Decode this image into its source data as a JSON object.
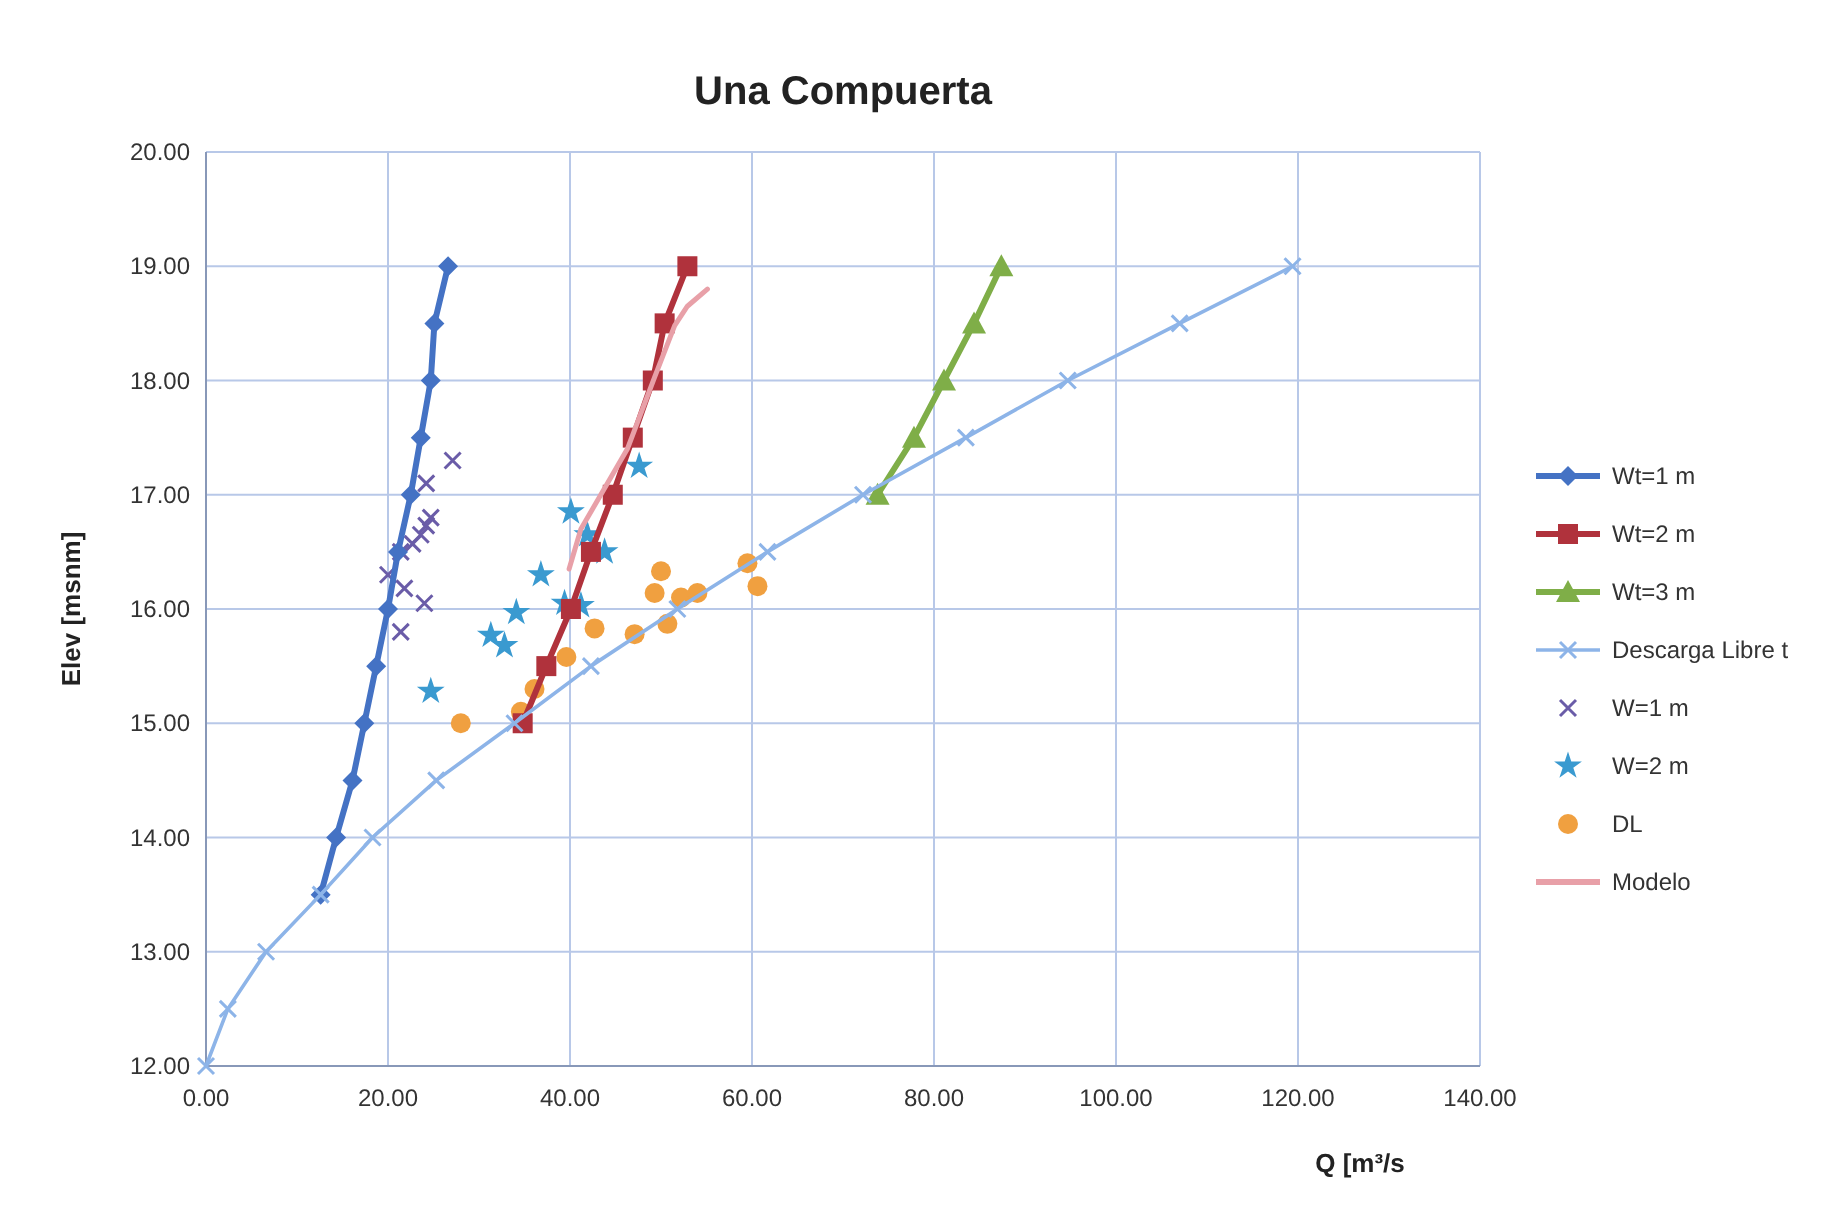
{
  "chart_data": {
    "type": "line",
    "title": "Una Compuerta",
    "xlabel": "Q [m³/s",
    "ylabel": "Elev [msnm]",
    "xlim": [
      0,
      140
    ],
    "ylim": [
      12,
      20
    ],
    "xticks": [
      {
        "value": 0,
        "label": "0.00"
      },
      {
        "value": 20,
        "label": "20.00"
      },
      {
        "value": 40,
        "label": "40.00"
      },
      {
        "value": 60,
        "label": "60.00"
      },
      {
        "value": 80,
        "label": "80.00"
      },
      {
        "value": 100,
        "label": "100.00"
      },
      {
        "value": 120,
        "label": "120.00"
      },
      {
        "value": 140,
        "label": "140.00"
      }
    ],
    "yticks": [
      {
        "value": 12,
        "label": "12.00"
      },
      {
        "value": 13,
        "label": "13.00"
      },
      {
        "value": 14,
        "label": "14.00"
      },
      {
        "value": 15,
        "label": "15.00"
      },
      {
        "value": 16,
        "label": "16.00"
      },
      {
        "value": 17,
        "label": "17.00"
      },
      {
        "value": 18,
        "label": "18.00"
      },
      {
        "value": 19,
        "label": "19.00"
      },
      {
        "value": 20,
        "label": "20.00"
      }
    ],
    "grid": true,
    "legend": "right",
    "series": [
      {
        "name": "Wt=1 m",
        "marker": "diamond",
        "color": "#4472c4",
        "x": [
          12.6,
          14.3,
          16.1,
          17.4,
          18.7,
          20.0,
          21.1,
          22.5,
          23.6,
          24.7,
          25.1,
          26.6
        ],
        "values": [
          13.5,
          14,
          14.5,
          15,
          15.5,
          16,
          16.5,
          17,
          17.5,
          18,
          18.5,
          19
        ]
      },
      {
        "name": "Wt=2 m",
        "marker": "square",
        "color": "#b0323c",
        "x": [
          34.8,
          37.4,
          40.1,
          42.3,
          44.7,
          46.9,
          49.1,
          50.4,
          52.9
        ],
        "values": [
          15,
          15.5,
          16,
          16.5,
          17,
          17.5,
          18,
          18.5,
          19
        ]
      },
      {
        "name": "Wt=3 m",
        "marker": "triangle",
        "color": "#7fae48",
        "x": [
          73.8,
          77.8,
          81.1,
          84.4,
          87.4
        ],
        "values": [
          17,
          17.5,
          18,
          18.5,
          19
        ]
      },
      {
        "name": "Descarga Libre t",
        "marker": "cross",
        "color": "#8db4e8",
        "x": [
          0,
          2.4,
          6.6,
          12.6,
          18.3,
          25.3,
          33.9,
          42.3,
          51.8,
          61.7,
          72.2,
          83.5,
          94.7,
          107,
          119.4
        ],
        "values": [
          12,
          12.5,
          13,
          13.5,
          14,
          14.5,
          15,
          15.5,
          16,
          16.5,
          17,
          17.5,
          18,
          18.5,
          19
        ]
      },
      {
        "name": "W=1 m",
        "type": "scatter",
        "marker": "cross",
        "color": "#6a5ca8",
        "x": [
          27.1,
          24.2,
          24.7,
          24.2,
          23.6,
          22.7,
          21.4,
          20.0,
          21.8,
          24.0,
          21.4
        ],
        "values": [
          17.3,
          17.1,
          16.8,
          16.73,
          16.65,
          16.57,
          16.5,
          16.3,
          16.18,
          16.05,
          15.8
        ]
      },
      {
        "name": "W=2 m",
        "type": "scatter",
        "marker": "star",
        "color": "#3a9ad0",
        "x": [
          47.6,
          40.1,
          41.9,
          43.8,
          36.8,
          34.1,
          39.4,
          41.2,
          31.3,
          32.8,
          24.7
        ],
        "values": [
          17.25,
          16.85,
          16.65,
          16.5,
          16.3,
          15.97,
          16.05,
          16.03,
          15.77,
          15.68,
          15.28
        ]
      },
      {
        "name": "DL",
        "type": "scatter",
        "marker": "circle",
        "color": "#f0a040",
        "x": [
          28.0,
          34.6,
          36.1,
          39.6,
          42.7,
          47.1,
          50.7,
          49.3,
          50.0,
          52.2,
          54.0,
          59.5,
          60.6
        ],
        "values": [
          15.0,
          15.1,
          15.3,
          15.58,
          15.83,
          15.78,
          15.87,
          16.14,
          16.33,
          16.1,
          16.14,
          16.4,
          16.2
        ]
      },
      {
        "name": "Modelo",
        "marker": "none",
        "color": "#e8a0a8",
        "x": [
          39.9,
          41.2,
          46.3,
          49.3,
          51.5,
          52.9,
          55.1
        ],
        "values": [
          16.35,
          16.7,
          17.4,
          18.03,
          18.48,
          18.65,
          18.8
        ]
      }
    ]
  }
}
